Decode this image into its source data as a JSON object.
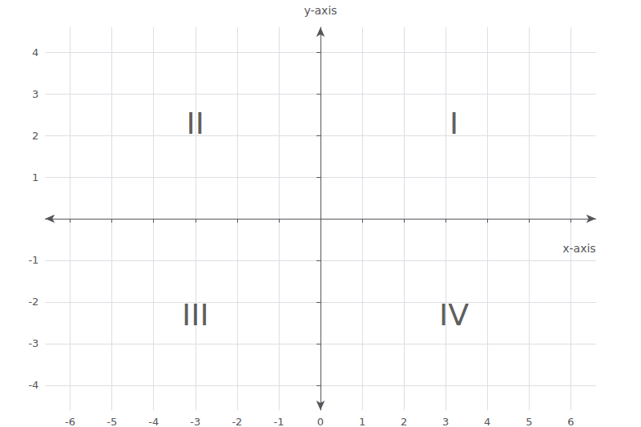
{
  "chart_data": {
    "type": "plane",
    "xlabel": "x-axis",
    "ylabel": "y-axis",
    "xlim": [
      -6.6,
      6.6
    ],
    "ylim": [
      -4.6,
      4.6
    ],
    "xticks": [
      -6,
      -5,
      -4,
      -3,
      -2,
      -1,
      0,
      1,
      2,
      3,
      4,
      5,
      6
    ],
    "yticks": [
      -4,
      -3,
      -2,
      -1,
      1,
      2,
      3,
      4
    ],
    "grid": true,
    "annotations": [
      {
        "text": "I",
        "x": 3.2,
        "y": 2.3
      },
      {
        "text": "II",
        "x": -3.0,
        "y": 2.3
      },
      {
        "text": "III",
        "x": -3.0,
        "y": -2.3
      },
      {
        "text": "IV",
        "x": 3.2,
        "y": -2.3
      }
    ]
  }
}
